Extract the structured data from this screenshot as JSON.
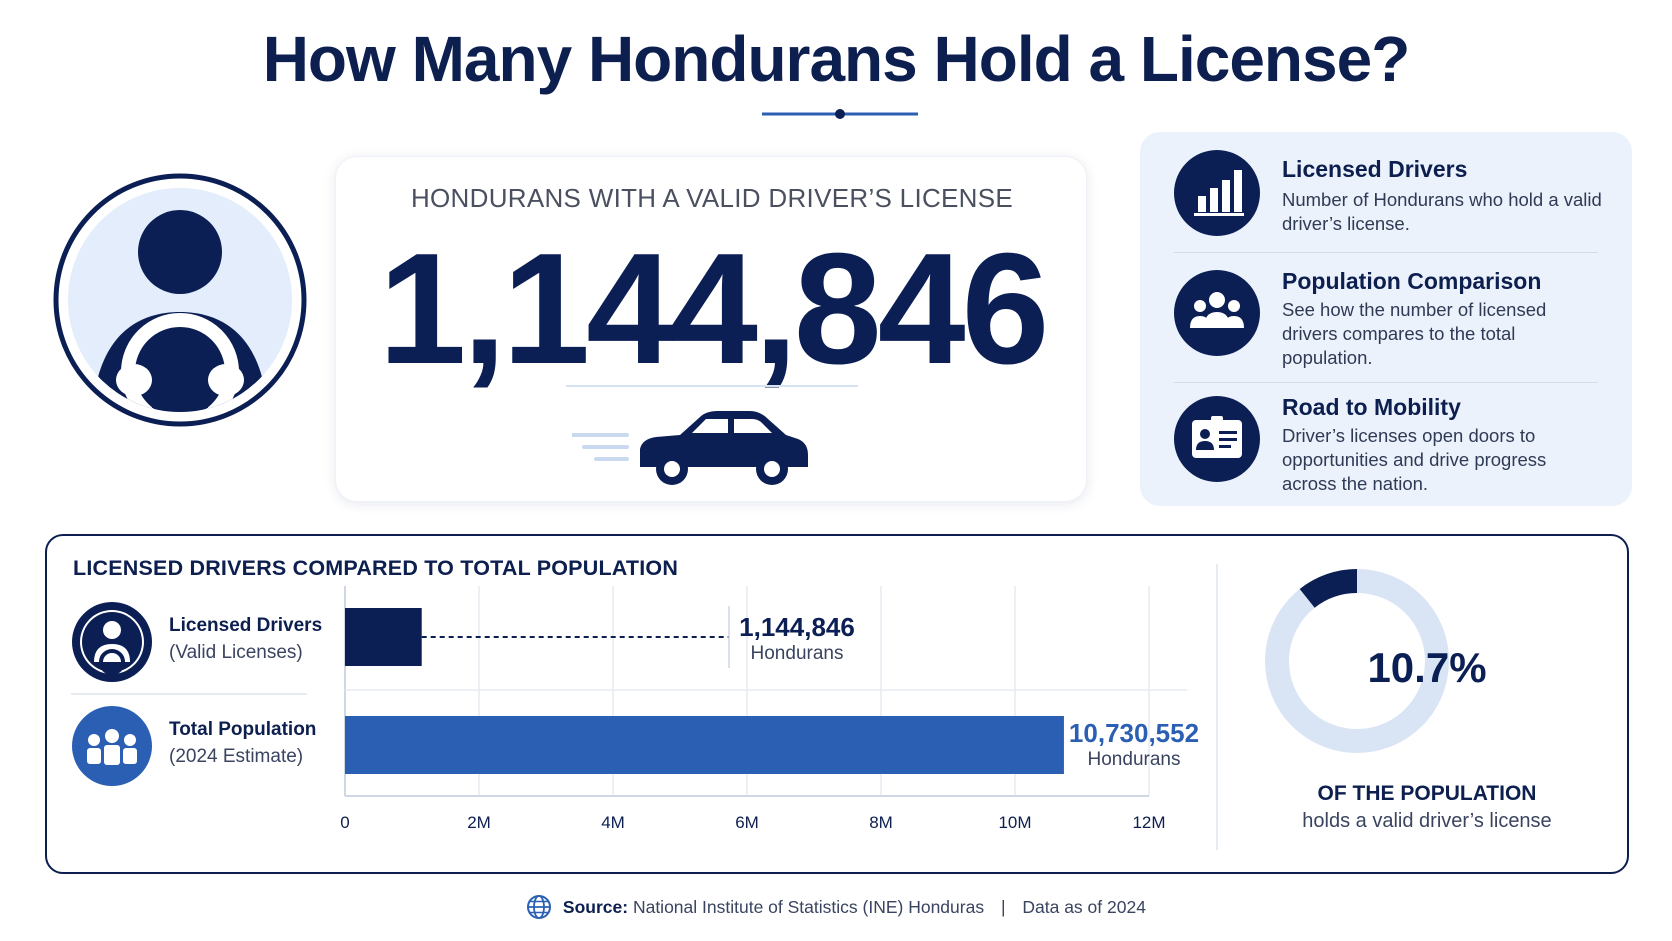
{
  "title": "How Many Hondurans Hold a License?",
  "main_card": {
    "label": "HONDURANS WITH A VALID DRIVER’S LICENSE",
    "number": "1,144,846"
  },
  "info": [
    {
      "icon": "bar-chart-icon",
      "title": "Licensed Drivers",
      "description": "Number of Hondurans who hold a valid driver’s license."
    },
    {
      "icon": "people-group-icon",
      "title": "Population Comparison",
      "description": "See how the number of licensed drivers compares to the total population."
    },
    {
      "icon": "id-card-icon",
      "title": "Road to Mobility",
      "description": "Driver’s licenses open doors to opportunities and drive progress across the nation."
    }
  ],
  "comparison": {
    "title": "LICENSED DRIVERS COMPARED TO TOTAL POPULATION",
    "legend": [
      {
        "line1": "Licensed Drivers",
        "line2": "(Valid Licenses)",
        "icon": "driver-icon"
      },
      {
        "line1": "Total Population",
        "line2": "(2024 Estimate)",
        "icon": "people-group-icon"
      }
    ],
    "value_labels": [
      {
        "number": "1,144,846",
        "unit": "Hondurans"
      },
      {
        "number": "10,730,552",
        "unit": "Hondurans"
      }
    ]
  },
  "chart_data": [
    {
      "type": "bar",
      "orientation": "horizontal",
      "title": "LICENSED DRIVERS COMPARED TO TOTAL POPULATION",
      "categories": [
        "Licensed Drivers",
        "Total Population"
      ],
      "values": [
        1144846,
        10730552
      ],
      "x_ticks": [
        "0",
        "2M",
        "4M",
        "6M",
        "8M",
        "10M",
        "12M"
      ],
      "xlim": [
        0,
        12000000
      ],
      "grid": true,
      "colors": [
        "#0b1f55",
        "#2b5fb4"
      ]
    },
    {
      "type": "pie",
      "style": "donut",
      "slices": [
        {
          "name": "licensed",
          "value": 10.7
        },
        {
          "name": "other",
          "value": 89.3
        }
      ],
      "center_label": "10.7%",
      "caption_title": "OF THE POPULATION",
      "caption": "holds a valid driver’s license",
      "colors": [
        "#0b1f55",
        "#d9e5f5"
      ]
    }
  ],
  "footer": {
    "source_label": "Source:",
    "source_text": "National Institute of Statistics (INE) Honduras",
    "separator": "|",
    "date_text": "Data as of 2024"
  },
  "colors": {
    "navy": "#0b1f55",
    "blue": "#2b5fb4",
    "light": "#ecf2fc"
  }
}
